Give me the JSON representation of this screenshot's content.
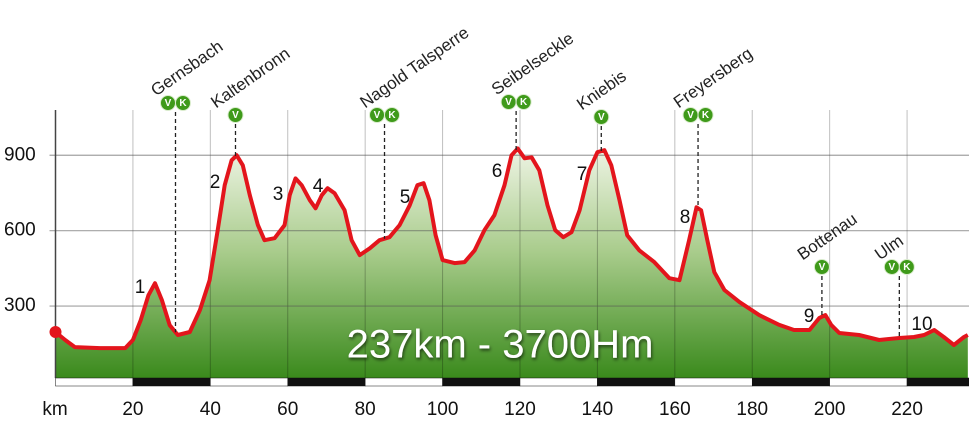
{
  "chart_data": {
    "type": "line",
    "annotation": "237km - 3700Hm",
    "x_axis_label": "km",
    "color": "#e3151c",
    "xlim": [
      0,
      236
    ],
    "ylim": [
      0,
      1080
    ],
    "xticks": [
      20,
      40,
      60,
      80,
      100,
      120,
      140,
      160,
      180,
      200,
      220
    ],
    "yticks": [
      300,
      600,
      900
    ],
    "grid": true,
    "x": [
      0,
      2.5,
      5,
      11.5,
      18,
      20,
      22,
      24,
      25.7,
      27.5,
      29.5,
      31.6,
      34.7,
      37.3,
      39.8,
      41.9,
      43.7,
      45.5,
      46.8,
      48.4,
      50.2,
      52.3,
      54,
      56.6,
      59.2,
      60.5,
      62,
      63.6,
      65.7,
      67.2,
      68.8,
      70.3,
      72.1,
      74.7,
      76.5,
      78.6,
      81.2,
      83.7,
      86.3,
      88.9,
      91.5,
      93.5,
      95.1,
      96.6,
      98.2,
      100,
      103.1,
      105.7,
      108.3,
      110.8,
      113.4,
      116,
      117.8,
      119.4,
      121.2,
      123,
      125,
      127.1,
      129.1,
      131.2,
      133.3,
      135.4,
      137.9,
      140,
      141.8,
      143.6,
      145.7,
      147.7,
      150.8,
      154.7,
      158.6,
      161.2,
      163.7,
      165.6,
      166.8,
      168.4,
      170.2,
      172.8,
      176.7,
      181.8,
      187,
      190.8,
      194.8,
      197.3,
      198.9,
      200.4,
      202.5,
      207.6,
      212.8,
      218,
      221.8,
      224.4,
      227,
      229.5,
      232.1,
      234.7,
      235.7
    ],
    "values": [
      197,
      165,
      137,
      133,
      133,
      165,
      244,
      343,
      391,
      324,
      224,
      185,
      197,
      284,
      403,
      602,
      781,
      880,
      900,
      860,
      741,
      622,
      562,
      570,
      622,
      741,
      808,
      781,
      721,
      689,
      741,
      769,
      749,
      681,
      562,
      503,
      530,
      562,
      574,
      622,
      701,
      781,
      789,
      721,
      582,
      483,
      471,
      475,
      522,
      602,
      662,
      781,
      900,
      927,
      888,
      892,
      840,
      701,
      602,
      574,
      594,
      681,
      840,
      912,
      920,
      860,
      721,
      582,
      522,
      475,
      411,
      403,
      562,
      693,
      681,
      562,
      435,
      364,
      316,
      264,
      225,
      205,
      205,
      252,
      264,
      225,
      193,
      185,
      165,
      173,
      177,
      185,
      205,
      177,
      145,
      177,
      185
    ],
    "peak_labels": [
      "1",
      "2",
      "3",
      "4",
      "5",
      "6",
      "7",
      "8",
      "9",
      "10"
    ],
    "places": [
      {
        "name": "Gernsbach",
        "km": 31,
        "icons": [
          "V",
          "K"
        ]
      },
      {
        "name": "Kaltenbronn",
        "km": 46.5,
        "icons": [
          "V"
        ]
      },
      {
        "name": "Nagold Talsperre",
        "km": 85,
        "icons": [
          "V",
          "K"
        ]
      },
      {
        "name": "Seibelseckle",
        "km": 119,
        "icons": [
          "V",
          "K"
        ]
      },
      {
        "name": "Kniebis",
        "km": 141,
        "icons": [
          "V"
        ]
      },
      {
        "name": "Freyersberg",
        "km": 166,
        "icons": [
          "V",
          "K"
        ]
      },
      {
        "name": "Bottenau",
        "km": 198,
        "icons": [
          "V"
        ]
      },
      {
        "name": "Ulm",
        "km": 218,
        "icons": [
          "V",
          "K"
        ]
      }
    ]
  }
}
